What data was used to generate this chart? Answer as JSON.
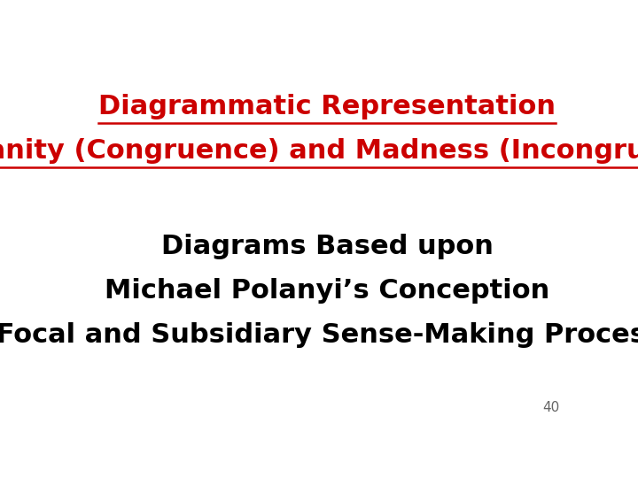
{
  "bg_color": "#ffffff",
  "title_line1": "Diagrammatic Representation",
  "title_line2": "Of Sanity (Congruence) and Madness (Incongruence)",
  "title_color": "#cc0000",
  "title_fontsize": 22,
  "body_line1": "Diagrams Based upon",
  "body_line2": "Michael Polanyi’s Conception",
  "body_line3": "of Focal and Subsidiary Sense-Making Processes",
  "body_color": "#000000",
  "body_fontsize": 22,
  "page_number": "40",
  "page_number_color": "#666666",
  "page_number_fontsize": 11
}
